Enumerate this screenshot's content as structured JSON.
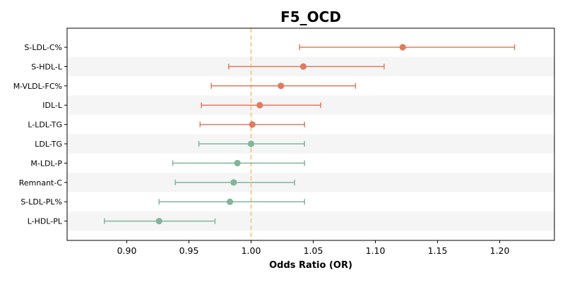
{
  "chart_data": {
    "type": "forest",
    "title": "F5_OCD",
    "xlabel": "Odds Ratio (OR)",
    "ylabel": "",
    "xlim": [
      0.852,
      1.244
    ],
    "xticks": [
      0.9,
      0.95,
      1.0,
      1.05,
      1.1,
      1.15,
      1.2
    ],
    "xtick_labels": [
      "0.90",
      "0.95",
      "1.00",
      "1.05",
      "1.10",
      "1.15",
      "1.20"
    ],
    "reference_line": 1.0,
    "reference_line_style": "dashed",
    "grid": false,
    "alternating_row_bands": true,
    "colors": {
      "risk": "#e07b5f",
      "protective": "#82b59a",
      "reference_line": "#f6c77d",
      "band": "#f5f5f5"
    },
    "rows": [
      {
        "label": "S-LDL-C%",
        "or": 1.122,
        "lower": 1.039,
        "upper": 1.212,
        "group": "risk"
      },
      {
        "label": "S-HDL-L",
        "or": 1.042,
        "lower": 0.982,
        "upper": 1.107,
        "group": "risk"
      },
      {
        "label": "M-VLDL-FC%",
        "or": 1.024,
        "lower": 0.968,
        "upper": 1.084,
        "group": "risk"
      },
      {
        "label": "IDL-L",
        "or": 1.007,
        "lower": 0.96,
        "upper": 1.056,
        "group": "risk"
      },
      {
        "label": "L-LDL-TG",
        "or": 1.001,
        "lower": 0.959,
        "upper": 1.043,
        "group": "risk"
      },
      {
        "label": "LDL-TG",
        "or": 1.0,
        "lower": 0.958,
        "upper": 1.043,
        "group": "protective"
      },
      {
        "label": "M-LDL-P",
        "or": 0.989,
        "lower": 0.937,
        "upper": 1.043,
        "group": "protective"
      },
      {
        "label": "Remnant-C",
        "or": 0.986,
        "lower": 0.939,
        "upper": 1.035,
        "group": "protective"
      },
      {
        "label": "S-LDL-PL%",
        "or": 0.983,
        "lower": 0.926,
        "upper": 1.043,
        "group": "protective"
      },
      {
        "label": "L-HDL-PL",
        "or": 0.926,
        "lower": 0.882,
        "upper": 0.971,
        "group": "protective"
      }
    ]
  }
}
